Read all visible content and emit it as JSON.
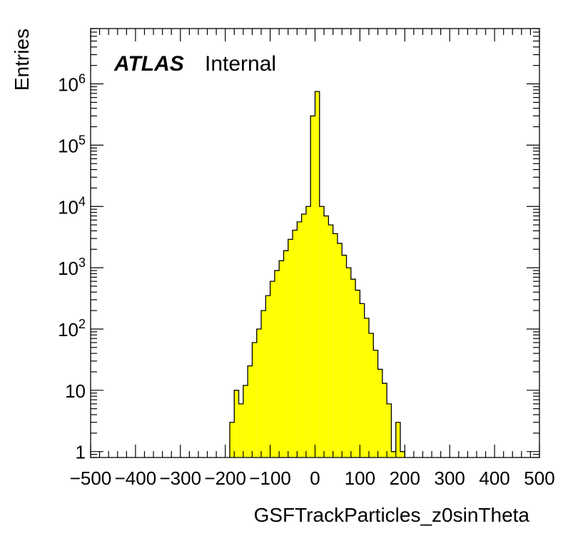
{
  "chart_data": {
    "type": "histogram",
    "xlabel": "GSFTrackParticles_z0sinTheta",
    "ylabel": "Entries",
    "label_bold": "ATLAS",
    "label_status": "Internal",
    "xlim": [
      -500,
      500
    ],
    "ylim": [
      0.8,
      8000000
    ],
    "y_scale": "log",
    "x_ticks": [
      -500,
      -400,
      -300,
      -200,
      -100,
      0,
      100,
      200,
      300,
      400,
      500
    ],
    "x_tick_labels": [
      "−500",
      "−400",
      "−300",
      "−200",
      "−100",
      "0",
      "100",
      "200",
      "300",
      "400",
      "500"
    ],
    "y_ticks": [
      {
        "value": 1,
        "base": "1",
        "exp": ""
      },
      {
        "value": 10,
        "base": "10",
        "exp": ""
      },
      {
        "value": 100,
        "base": "10",
        "exp": "2"
      },
      {
        "value": 1000,
        "base": "10",
        "exp": "3"
      },
      {
        "value": 10000,
        "base": "10",
        "exp": "4"
      },
      {
        "value": 100000,
        "base": "10",
        "exp": "5"
      },
      {
        "value": 1000000,
        "base": "10",
        "exp": "6"
      }
    ],
    "bin_width": 10,
    "fill_color": "#ffff00",
    "line_color": "#000000",
    "bins": [
      {
        "x": -190,
        "y": 3
      },
      {
        "x": -180,
        "y": 10
      },
      {
        "x": -170,
        "y": 6
      },
      {
        "x": -160,
        "y": 12
      },
      {
        "x": -150,
        "y": 25
      },
      {
        "x": -140,
        "y": 60
      },
      {
        "x": -130,
        "y": 100
      },
      {
        "x": -120,
        "y": 200
      },
      {
        "x": -110,
        "y": 350
      },
      {
        "x": -100,
        "y": 600
      },
      {
        "x": -90,
        "y": 900
      },
      {
        "x": -80,
        "y": 1300
      },
      {
        "x": -70,
        "y": 1900
      },
      {
        "x": -60,
        "y": 2900
      },
      {
        "x": -50,
        "y": 4100
      },
      {
        "x": -40,
        "y": 5600
      },
      {
        "x": -30,
        "y": 7500
      },
      {
        "x": -20,
        "y": 10000
      },
      {
        "x": -10,
        "y": 300000
      },
      {
        "x": 0,
        "y": 750000
      },
      {
        "x": 10,
        "y": 10000
      },
      {
        "x": 20,
        "y": 7000
      },
      {
        "x": 30,
        "y": 5000
      },
      {
        "x": 40,
        "y": 3600
      },
      {
        "x": 50,
        "y": 2500
      },
      {
        "x": 60,
        "y": 1600
      },
      {
        "x": 70,
        "y": 1000
      },
      {
        "x": 80,
        "y": 650
      },
      {
        "x": 90,
        "y": 430
      },
      {
        "x": 100,
        "y": 260
      },
      {
        "x": 110,
        "y": 150
      },
      {
        "x": 120,
        "y": 85
      },
      {
        "x": 130,
        "y": 45
      },
      {
        "x": 140,
        "y": 22
      },
      {
        "x": 150,
        "y": 13
      },
      {
        "x": 160,
        "y": 6
      },
      {
        "x": 170,
        "y": 1
      },
      {
        "x": 180,
        "y": 3
      },
      {
        "x": 190,
        "y": 1
      }
    ]
  }
}
